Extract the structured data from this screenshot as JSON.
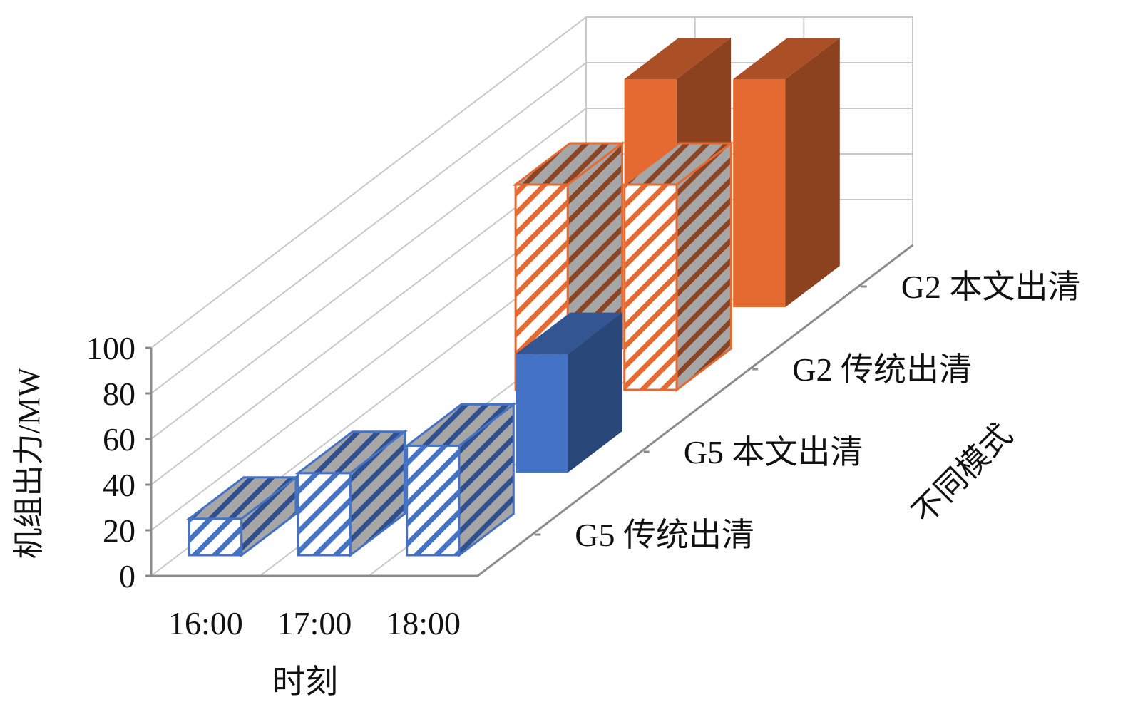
{
  "chart_data": {
    "type": "bar",
    "variant": "3d-clustered-depth",
    "categories": [
      "16:00",
      "17:00",
      "18:00"
    ],
    "series": [
      {
        "name": "G5 传统出清",
        "values": [
          16,
          36,
          48
        ],
        "color": "#4472c4",
        "pattern": "hatched"
      },
      {
        "name": "G5 本文出清",
        "values": [
          null,
          null,
          52
        ],
        "color": "#4472c4",
        "pattern": "solid"
      },
      {
        "name": "G2 传统出清",
        "values": [
          null,
          90,
          90
        ],
        "color": "#e46a32",
        "pattern": "hatched"
      },
      {
        "name": "G2 本文出清",
        "values": [
          null,
          100,
          100
        ],
        "color": "#e46a32",
        "pattern": "solid"
      }
    ],
    "yticks": [
      "0",
      "20",
      "40",
      "60",
      "80",
      "100"
    ],
    "ylim": [
      0,
      100
    ],
    "xlabel": "时刻",
    "ylabel": "机组出力/MW",
    "zlabel": "不同模式",
    "grid": true,
    "legend": "none"
  }
}
